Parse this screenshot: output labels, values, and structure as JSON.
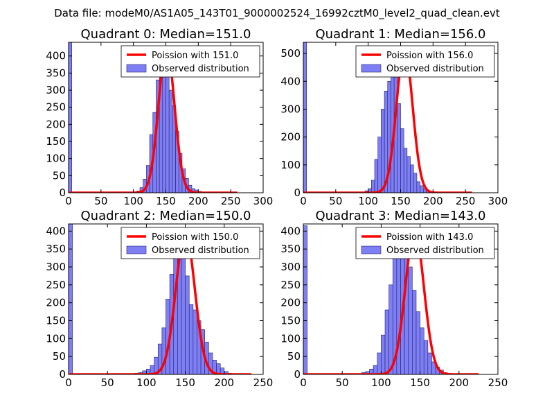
{
  "suptitle": "Data file: modeM0/AS1A05_143T01_9000002524_16992cztM0_level2_quad_clean.evt",
  "colors": {
    "bar_fill": "#7f7ff5",
    "bar_edge": "#1f1f6b",
    "curve": "#ff0000"
  },
  "chart_data": [
    {
      "type": "bar",
      "title": "Quadrant 0: Median=151.0",
      "xlim": [
        0,
        300
      ],
      "ylim": [
        0,
        440
      ],
      "xticks": [
        0,
        50,
        100,
        150,
        200,
        250,
        300
      ],
      "yticks": [
        0,
        50,
        100,
        150,
        200,
        250,
        300,
        350,
        400
      ],
      "legend": {
        "curve": "Poission with 151.0",
        "bars": "Observed distribution",
        "placement": "top-right"
      },
      "bin_start": 0,
      "bin_width": 5,
      "values": [
        440,
        0,
        0,
        0,
        0,
        0,
        0,
        0,
        0,
        0,
        0,
        0,
        0,
        0,
        0,
        0,
        0,
        0,
        0,
        1,
        2,
        5,
        15,
        40,
        80,
        170,
        235,
        330,
        420,
        400,
        350,
        300,
        255,
        180,
        115,
        70,
        42,
        22,
        12,
        8,
        4,
        2,
        1,
        0,
        0,
        0,
        0,
        0,
        0,
        0,
        0,
        0,
        0,
        0,
        0,
        0,
        0,
        0,
        0,
        0
      ],
      "curve": {
        "mean": 151,
        "scale": 425,
        "sigma": 12.3,
        "x_range": [
          0,
          260
        ]
      }
    },
    {
      "type": "bar",
      "title": "Quadrant 1: Median=156.0",
      "xlim": [
        0,
        300
      ],
      "ylim": [
        0,
        540
      ],
      "xticks": [
        0,
        50,
        100,
        150,
        200,
        250,
        300
      ],
      "yticks": [
        0,
        100,
        200,
        300,
        400,
        500
      ],
      "legend": {
        "curve": "Poission with 156.0",
        "bars": "Observed distribution",
        "placement": "top-right"
      },
      "bin_start": 0,
      "bin_width": 5,
      "values": [
        540,
        0,
        0,
        0,
        0,
        0,
        0,
        0,
        0,
        0,
        0,
        0,
        0,
        0,
        0,
        0,
        0,
        2,
        3,
        7,
        15,
        45,
        120,
        200,
        300,
        365,
        400,
        460,
        415,
        320,
        230,
        160,
        130,
        100,
        70,
        40,
        25,
        15,
        8,
        4,
        2,
        0,
        0,
        0,
        0,
        0,
        0,
        0,
        0,
        0,
        0,
        0,
        0,
        0,
        0,
        0,
        0,
        0,
        0,
        0
      ],
      "curve": {
        "mean": 156,
        "scale": 515,
        "sigma": 12.5,
        "x_range": [
          0,
          260
        ]
      }
    },
    {
      "type": "bar",
      "title": "Quadrant 2: Median=150.0",
      "xlim": [
        0,
        250
      ],
      "ylim": [
        0,
        420
      ],
      "xticks": [
        0,
        50,
        100,
        150,
        200,
        250
      ],
      "yticks": [
        0,
        50,
        100,
        150,
        200,
        250,
        300,
        350,
        400
      ],
      "legend": {
        "curve": "Poission with 150.0",
        "bars": "Observed distribution",
        "placement": "top-right"
      },
      "bin_start": 0,
      "bin_width": 5,
      "values": [
        420,
        0,
        0,
        0,
        0,
        0,
        0,
        0,
        0,
        0,
        0,
        0,
        0,
        0,
        0,
        0,
        2,
        3,
        5,
        10,
        15,
        25,
        48,
        85,
        130,
        210,
        280,
        365,
        400,
        360,
        275,
        195,
        180,
        150,
        125,
        90,
        60,
        40,
        30,
        18,
        8,
        3,
        0,
        0,
        0,
        0,
        0,
        0,
        0,
        0,
        0
      ],
      "curve": {
        "mean": 150,
        "scale": 395,
        "sigma": 12.2,
        "x_range": [
          0,
          235
        ]
      }
    },
    {
      "type": "bar",
      "title": "Quadrant 3: Median=143.0",
      "xlim": [
        0,
        250
      ],
      "ylim": [
        0,
        420
      ],
      "xticks": [
        0,
        50,
        100,
        150,
        200,
        250
      ],
      "yticks": [
        0,
        50,
        100,
        150,
        200,
        250,
        300,
        350,
        400
      ],
      "legend": {
        "curve": "Poission with 143.0",
        "bars": "Observed distribution",
        "placement": "top-right"
      },
      "bin_start": 0,
      "bin_width": 5,
      "values": [
        415,
        0,
        0,
        0,
        0,
        0,
        0,
        0,
        0,
        0,
        0,
        0,
        0,
        1,
        2,
        5,
        8,
        15,
        25,
        60,
        110,
        180,
        250,
        325,
        365,
        410,
        380,
        300,
        235,
        175,
        130,
        95,
        60,
        35,
        20,
        12,
        5,
        2,
        0,
        0,
        0,
        0,
        0,
        0,
        0,
        0,
        0,
        0,
        0,
        0
      ],
      "curve": {
        "mean": 143,
        "scale": 400,
        "sigma": 12.0,
        "x_range": [
          0,
          225
        ]
      }
    }
  ]
}
